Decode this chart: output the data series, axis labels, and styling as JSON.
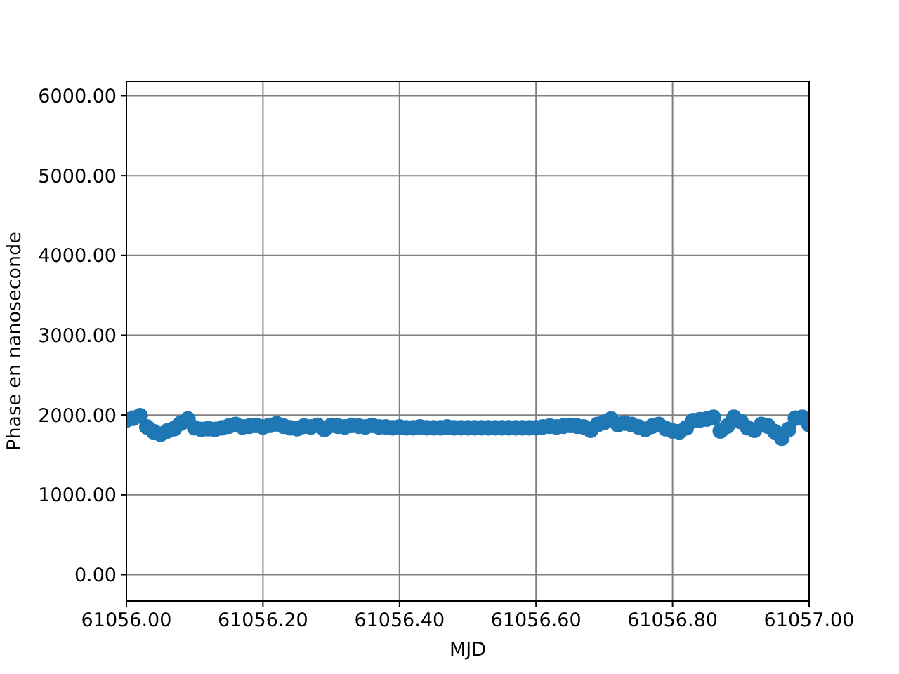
{
  "chart_data": {
    "type": "scatter",
    "xlabel": "MJD",
    "ylabel": "Phase en nanoseconde",
    "x": [
      61056.0,
      61056.01,
      61056.02,
      61056.03,
      61056.04,
      61056.05,
      61056.06,
      61056.07,
      61056.08,
      61056.09,
      61056.1,
      61056.11,
      61056.12,
      61056.13,
      61056.14,
      61056.15,
      61056.16,
      61056.17,
      61056.18,
      61056.19,
      61056.2,
      61056.21,
      61056.22,
      61056.23,
      61056.24,
      61056.25,
      61056.26,
      61056.27,
      61056.28,
      61056.29,
      61056.3,
      61056.31,
      61056.32,
      61056.33,
      61056.34,
      61056.35,
      61056.36,
      61056.37,
      61056.38,
      61056.39,
      61056.4,
      61056.41,
      61056.42,
      61056.43,
      61056.44,
      61056.45,
      61056.46,
      61056.47,
      61056.48,
      61056.49,
      61056.5,
      61056.51,
      61056.52,
      61056.53,
      61056.54,
      61056.55,
      61056.56,
      61056.57,
      61056.58,
      61056.59,
      61056.6,
      61056.61,
      61056.62,
      61056.63,
      61056.64,
      61056.65,
      61056.66,
      61056.67,
      61056.68,
      61056.69,
      61056.7,
      61056.71,
      61056.72,
      61056.73,
      61056.74,
      61056.75,
      61056.76,
      61056.77,
      61056.78,
      61056.79,
      61056.8,
      61056.81,
      61056.82,
      61056.83,
      61056.84,
      61056.85,
      61056.86,
      61056.87,
      61056.88,
      61056.89,
      61056.9,
      61056.91,
      61056.92,
      61056.93,
      61056.94,
      61056.95,
      61056.96,
      61056.97,
      61056.98,
      61056.99,
      61057.0
    ],
    "series": [
      {
        "color": "#1f77b4",
        "values": [
          1940,
          1960,
          1990,
          1850,
          1790,
          1760,
          1800,
          1830,
          1900,
          1950,
          1840,
          1820,
          1830,
          1820,
          1840,
          1860,
          1880,
          1850,
          1860,
          1870,
          1850,
          1870,
          1890,
          1860,
          1840,
          1830,
          1860,
          1850,
          1870,
          1820,
          1870,
          1860,
          1850,
          1870,
          1860,
          1850,
          1870,
          1850,
          1850,
          1840,
          1850,
          1840,
          1840,
          1850,
          1840,
          1840,
          1840,
          1850,
          1840,
          1840,
          1840,
          1840,
          1840,
          1840,
          1840,
          1840,
          1840,
          1840,
          1840,
          1840,
          1840,
          1850,
          1860,
          1850,
          1860,
          1870,
          1860,
          1850,
          1810,
          1880,
          1910,
          1950,
          1880,
          1900,
          1880,
          1850,
          1820,
          1860,
          1880,
          1830,
          1800,
          1790,
          1840,
          1930,
          1940,
          1950,
          1970,
          1800,
          1860,
          1970,
          1920,
          1840,
          1810,
          1880,
          1860,
          1790,
          1710,
          1820,
          1960,
          1970,
          1880
        ]
      }
    ],
    "xlim": [
      61056.0,
      61057.0
    ],
    "xticks": [
      {
        "value": 61056.0,
        "label": "61056.00"
      },
      {
        "value": 61056.2,
        "label": "61056.20"
      },
      {
        "value": 61056.4,
        "label": "61056.40"
      },
      {
        "value": 61056.6,
        "label": "61056.60"
      },
      {
        "value": 61056.8,
        "label": "61056.80"
      },
      {
        "value": 61057.0,
        "label": "61057.00"
      }
    ],
    "ylim": [
      -330,
      6180
    ],
    "yticks": [
      {
        "value": 0,
        "label": "0.00"
      },
      {
        "value": 1000,
        "label": "1000.00"
      },
      {
        "value": 2000,
        "label": "2000.00"
      },
      {
        "value": 3000,
        "label": "3000.00"
      },
      {
        "value": 4000,
        "label": "4000.00"
      },
      {
        "value": 5000,
        "label": "5000.00"
      },
      {
        "value": 6000,
        "label": "6000.00"
      }
    ],
    "grid": true,
    "marker": "circle"
  }
}
